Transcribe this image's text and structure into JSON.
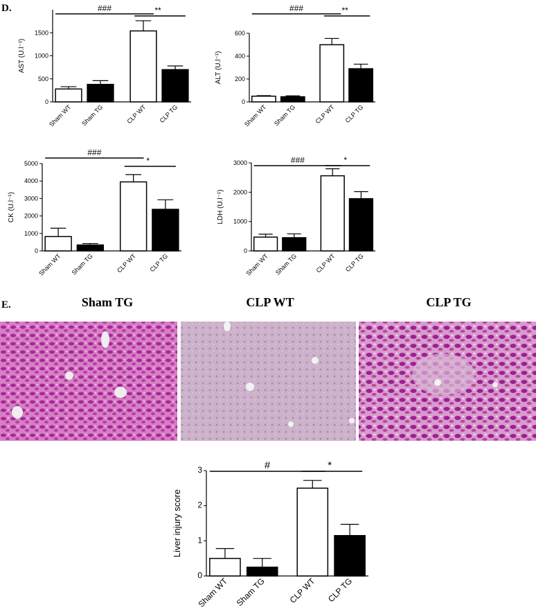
{
  "panel_labels": [
    "D.",
    "E."
  ],
  "image_captions": [
    "Sham TG",
    "CLP WT",
    "CLP TG"
  ],
  "chart_data": [
    {
      "type": "bar",
      "ylabel": "AST (U.l⁻¹)",
      "categories": [
        "Sham WT",
        "Sham TG",
        "CLP WT",
        "CLP TG"
      ],
      "values": [
        280,
        380,
        1540,
        700
      ],
      "errors": [
        50,
        80,
        220,
        80
      ],
      "colors": [
        "#ffffff",
        "#000000",
        "#ffffff",
        "#000000"
      ],
      "ylim": [
        0,
        2000
      ],
      "yticks": [
        0,
        500,
        1000,
        1500
      ],
      "annotations": [
        "###",
        "**"
      ]
    },
    {
      "type": "bar",
      "ylabel": "ALT (U.l⁻¹)",
      "categories": [
        "Sham WT",
        "Sham TG",
        "CLP WT",
        "CLP TG"
      ],
      "values": [
        50,
        45,
        500,
        290
      ],
      "errors": [
        5,
        8,
        55,
        40
      ],
      "colors": [
        "#ffffff",
        "#000000",
        "#ffffff",
        "#000000"
      ],
      "ylim": [
        0,
        600
      ],
      "yticks": [
        0,
        200,
        400,
        600
      ],
      "annotations": [
        "###",
        "**"
      ]
    },
    {
      "type": "bar",
      "ylabel": "CK (U.l⁻¹)",
      "categories": [
        "Sham WT",
        "Sham TG",
        "CLP WT",
        "CLP TG"
      ],
      "values": [
        820,
        340,
        3950,
        2380
      ],
      "errors": [
        480,
        80,
        420,
        550
      ],
      "colors": [
        "#ffffff",
        "#000000",
        "#ffffff",
        "#000000"
      ],
      "ylim": [
        0,
        5000
      ],
      "yticks": [
        0,
        1000,
        2000,
        3000,
        4000,
        5000
      ],
      "annotations": [
        "###",
        "*"
      ]
    },
    {
      "type": "bar",
      "ylabel": "LDH (U.l⁻¹)",
      "categories": [
        "Sham WT",
        "Sham TG",
        "CLP WT",
        "CLP TG"
      ],
      "values": [
        470,
        450,
        2560,
        1780
      ],
      "errors": [
        100,
        130,
        240,
        240
      ],
      "colors": [
        "#ffffff",
        "#000000",
        "#ffffff",
        "#000000"
      ],
      "ylim": [
        0,
        3000
      ],
      "yticks": [
        0,
        1000,
        2000,
        3000
      ],
      "annotations": [
        "###",
        "*"
      ]
    },
    {
      "type": "bar",
      "ylabel": "Liver injury score",
      "categories": [
        "Sham WT",
        "Sham TG",
        "CLP WT",
        "CLP TG"
      ],
      "values": [
        0.5,
        0.25,
        2.5,
        1.15
      ],
      "errors": [
        0.28,
        0.25,
        0.22,
        0.32
      ],
      "colors": [
        "#ffffff",
        "#000000",
        "#ffffff",
        "#000000"
      ],
      "ylim": [
        0,
        3
      ],
      "yticks": [
        0,
        1,
        2,
        3
      ],
      "annotations": [
        "#",
        "*"
      ]
    }
  ]
}
